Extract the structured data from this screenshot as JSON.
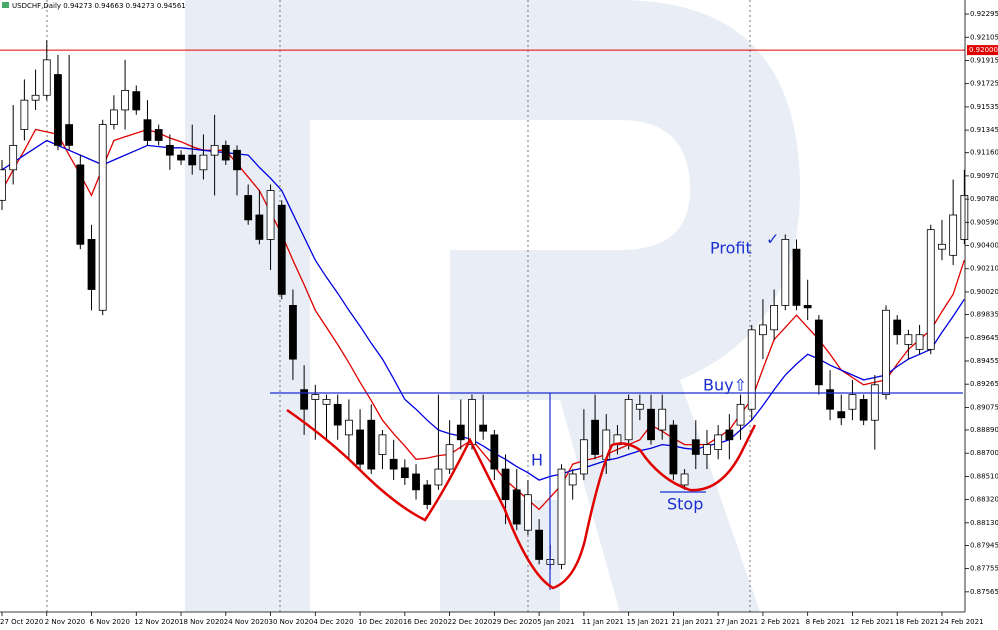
{
  "chart_data": {
    "type": "candlestick",
    "header": "USDCHF,Daily  0.94273 0.94663 0.94273 0.94561",
    "categories": [
      "27 Oct 2020",
      null,
      null,
      null,
      "2 Nov 2020",
      null,
      null,
      null,
      "6 Nov 2020",
      null,
      null,
      null,
      "12 Nov 2020",
      null,
      null,
      null,
      "18 Nov 2020",
      null,
      null,
      null,
      "24 Nov 2020",
      null,
      null,
      null,
      "30 Nov 2020",
      null,
      null,
      null,
      "4 Dec 2020",
      null,
      null,
      null,
      "10 Dec 2020",
      null,
      null,
      null,
      "16 Dec 2020",
      null,
      null,
      null,
      "22 Dec 2020",
      null,
      null,
      null,
      "29 Dec 2020",
      null,
      null,
      null,
      "5 Jan 2021",
      null,
      null,
      null,
      "11 Jan 2021",
      null,
      null,
      null,
      "15 Jan 2021",
      null,
      null,
      null,
      "21 Jan 2021",
      null,
      null,
      null,
      "27 Jan 2021",
      null,
      null,
      null,
      "2 Feb 2021",
      null,
      null,
      null,
      "8 Feb 2021",
      null,
      null,
      null,
      "12 Feb 2021",
      null,
      null,
      null,
      "18 Feb 2021",
      null,
      null,
      null,
      "24 Feb 2021",
      null,
      null
    ],
    "open": [
      0.9077,
      0.9102,
      0.9135,
      0.9159,
      0.9163,
      0.918,
      0.9139,
      0.9106,
      0.9045,
      0.8987,
      0.9139,
      0.9151,
      0.9166,
      0.9143,
      0.9135,
      0.9122,
      0.9114,
      0.9114,
      0.9102,
      0.9114,
      0.9122,
      0.9118,
      0.9081,
      0.9065,
      0.9045,
      0.9073,
      0.8991,
      0.8922,
      0.8914,
      0.891,
      0.891,
      0.8885,
      0.8889,
      0.8897,
      0.8869,
      0.8865,
      0.8858,
      0.8853,
      0.8844,
      0.8844,
      0.8857,
      0.8893,
      0.8877,
      0.8893,
      0.8885,
      0.8857,
      0.884,
      0.8807,
      0.8807,
      0.8779,
      0.8779,
      0.8844,
      0.8853,
      0.8897,
      0.8865,
      0.8877,
      0.8881,
      0.8906,
      0.8906,
      0.8889,
      0.8893,
      0.8844,
      0.8881,
      0.8869,
      0.8873,
      0.8889,
      0.8893,
      0.8906,
      0.8967,
      0.8971,
      0.8991,
      0.9037,
      0.8991,
      0.8979,
      0.8922,
      0.8904,
      0.8906,
      0.8914,
      0.8897,
      0.8918,
      0.8979,
      0.8959,
      0.8955,
      0.8955,
      0.9037,
      0.9032,
      0.9045
    ],
    "high": [
      0.911,
      0.9155,
      0.9176,
      0.9184,
      0.9208,
      0.9196,
      0.9196,
      0.9114,
      0.9057,
      0.9143,
      0.9163,
      0.9192,
      0.9171,
      0.9159,
      0.9139,
      0.9131,
      0.9118,
      0.9139,
      0.9131,
      0.9147,
      0.9126,
      0.9122,
      0.909,
      0.9085,
      0.909,
      0.9077,
      0.9004,
      0.8942,
      0.8926,
      0.8918,
      0.8918,
      0.8914,
      0.8906,
      0.891,
      0.8889,
      0.8881,
      0.8865,
      0.8861,
      0.8848,
      0.8918,
      0.8897,
      0.8914,
      0.8918,
      0.8918,
      0.8889,
      0.8869,
      0.8857,
      0.8848,
      0.8816,
      0.8795,
      0.8861,
      0.8857,
      0.8906,
      0.8918,
      0.8902,
      0.8893,
      0.8918,
      0.8918,
      0.8918,
      0.8918,
      0.8897,
      0.8857,
      0.8897,
      0.8889,
      0.8893,
      0.8902,
      0.8918,
      0.8975,
      0.8996,
      0.9004,
      0.9049,
      0.9045,
      0.9012,
      0.8983,
      0.8938,
      0.8918,
      0.893,
      0.8918,
      0.8934,
      0.8991,
      0.8983,
      0.8971,
      0.8975,
      0.9057,
      0.9061,
      0.9094,
      0.9102
    ],
    "low": [
      0.9069,
      0.909,
      0.9126,
      0.9151,
      0.9159,
      0.9118,
      0.9118,
      0.9037,
      0.8987,
      0.8983,
      0.9135,
      0.9135,
      0.9147,
      0.9122,
      0.9122,
      0.9102,
      0.9106,
      0.9098,
      0.9094,
      0.9081,
      0.9106,
      0.9081,
      0.9057,
      0.9041,
      0.902,
      0.8996,
      0.893,
      0.8885,
      0.8881,
      0.8881,
      0.8881,
      0.8865,
      0.8857,
      0.8853,
      0.8857,
      0.8848,
      0.8844,
      0.8832,
      0.8824,
      0.884,
      0.8853,
      0.8873,
      0.8873,
      0.8881,
      0.8848,
      0.8812,
      0.8807,
      0.8803,
      0.8779,
      0.8775,
      0.8775,
      0.8832,
      0.8848,
      0.8865,
      0.8853,
      0.8869,
      0.8873,
      0.8897,
      0.8877,
      0.8881,
      0.8848,
      0.884,
      0.8857,
      0.8857,
      0.8865,
      0.8865,
      0.8881,
      0.8897,
      0.8947,
      0.8963,
      0.8987,
      0.8987,
      0.8979,
      0.8918,
      0.8897,
      0.8893,
      0.8897,
      0.8893,
      0.8873,
      0.8914,
      0.8959,
      0.8947,
      0.8951,
      0.8951,
      0.9028,
      0.9024,
      0.9041
    ],
    "close": [
      0.9102,
      0.9122,
      0.9159,
      0.9163,
      0.9192,
      0.9122,
      0.9122,
      0.9041,
      0.9004,
      0.9139,
      0.9151,
      0.9167,
      0.9151,
      0.9126,
      0.9126,
      0.9114,
      0.911,
      0.9106,
      0.9114,
      0.9122,
      0.911,
      0.9102,
      0.9061,
      0.9045,
      0.9085,
      0.9,
      0.8947,
      0.8906,
      0.8918,
      0.8914,
      0.8893,
      0.8897,
      0.8861,
      0.8857,
      0.8885,
      0.8857,
      0.885,
      0.884,
      0.8828,
      0.8857,
      0.8877,
      0.8881,
      0.8914,
      0.8888,
      0.8857,
      0.8832,
      0.8812,
      0.8836,
      0.8783,
      0.8783,
      0.8857,
      0.8853,
      0.8881,
      0.8869,
      0.8889,
      0.8885,
      0.8914,
      0.891,
      0.8881,
      0.8906,
      0.8853,
      0.8853,
      0.8869,
      0.8877,
      0.8885,
      0.8881,
      0.891,
      0.8971,
      0.8975,
      0.8991,
      0.9045,
      0.8991,
      0.8989,
      0.8926,
      0.8906,
      0.8899,
      0.8918,
      0.8897,
      0.8926,
      0.8987,
      0.8967,
      0.8967,
      0.8967,
      0.9053,
      0.9041,
      0.9065,
      0.9081
    ],
    "bull_color": "#ffffff",
    "bear_color": "#000000",
    "lines": [
      {
        "color": "#e00000",
        "values": [
          0.9085,
          0.9102,
          0.9118,
          0.9135,
          0.9133,
          0.9131,
          0.9114,
          0.9098,
          0.9081,
          0.9104,
          0.9126,
          0.9129,
          0.9132,
          0.9135,
          0.9132,
          0.9128,
          0.9125,
          0.9121,
          0.9118,
          0.9118,
          0.9118,
          0.9107,
          0.9096,
          0.9085,
          0.9067,
          0.9049,
          0.9028,
          0.9008,
          0.8987,
          0.8973,
          0.8959,
          0.8944,
          0.8928,
          0.8913,
          0.8897,
          0.8886,
          0.8876,
          0.8865,
          0.8866,
          0.8868,
          0.8869,
          0.8875,
          0.8881,
          0.887,
          0.8859,
          0.8848,
          0.884,
          0.8832,
          0.8824,
          0.8834,
          0.8844,
          0.8861,
          0.8864,
          0.8866,
          0.8869,
          0.8873,
          0.8877,
          0.8881,
          0.8893,
          0.8888,
          0.8882,
          0.8877,
          0.8877,
          0.8877,
          0.8883,
          0.8889,
          0.8902,
          0.8914,
          0.8939,
          0.8963,
          0.8973,
          0.8983,
          0.8973,
          0.8963,
          0.8951,
          0.8938,
          0.8932,
          0.8926,
          0.8928,
          0.893,
          0.8943,
          0.8955,
          0.8963,
          0.8971,
          0.8986,
          0.9,
          0.9028
        ]
      },
      {
        "color": "#0000e0",
        "values": [
          0.9102,
          0.9108,
          0.9114,
          0.912,
          0.9126,
          0.9122,
          0.9118,
          0.9114,
          0.911,
          0.9106,
          0.911,
          0.9114,
          0.9118,
          0.9122,
          0.9121,
          0.912,
          0.912,
          0.9119,
          0.9118,
          0.9117,
          0.9116,
          0.9115,
          0.9114,
          0.9104,
          0.9095,
          0.9085,
          0.9066,
          0.9047,
          0.9028,
          0.9014,
          0.9001,
          0.8987,
          0.8974,
          0.896,
          0.8947,
          0.8931,
          0.8914,
          0.8906,
          0.8897,
          0.8889,
          0.8886,
          0.8884,
          0.8881,
          0.8876,
          0.887,
          0.8865,
          0.8859,
          0.8854,
          0.8848,
          0.8851,
          0.8853,
          0.8856,
          0.8858,
          0.8861,
          0.8864,
          0.8866,
          0.8869,
          0.8872,
          0.8874,
          0.8877,
          0.8876,
          0.8874,
          0.8873,
          0.8876,
          0.8878,
          0.8881,
          0.8889,
          0.8897,
          0.8909,
          0.8922,
          0.8934,
          0.8943,
          0.8951,
          0.8947,
          0.8942,
          0.8938,
          0.8934,
          0.893,
          0.8932,
          0.8934,
          0.8941,
          0.8947,
          0.8951,
          0.8955,
          0.8969,
          0.8982,
          0.8996
        ]
      }
    ],
    "ylim": [
      0.874,
      0.9241
    ],
    "yticks": [
      0.92295,
      0.92105,
      0.91915,
      0.91725,
      0.91535,
      0.91345,
      {
        "value": 0.9116,
        "label": "0.91160"
      },
      {
        "value": 0.9097,
        "label": "0.90970"
      },
      {
        "value": 0.9078,
        "label": "0.90780"
      },
      {
        "value": 0.9059,
        "label": "0.90590"
      },
      {
        "value": 0.904,
        "label": "0.90400"
      },
      {
        "value": 0.9021,
        "label": "0.90210"
      },
      {
        "value": 0.9002,
        "label": "0.90020"
      },
      0.89835,
      0.89645,
      0.89455,
      0.89265,
      0.89075,
      {
        "value": 0.8889,
        "label": "0.88890"
      },
      {
        "value": 0.887,
        "label": "0.88700"
      },
      {
        "value": 0.8851,
        "label": "0.88510"
      },
      {
        "value": 0.8832,
        "label": "0.88320"
      },
      {
        "value": 0.8813,
        "label": "0.88130"
      },
      0.87945,
      0.87755,
      0.87565
    ],
    "hline": {
      "value": 0.92,
      "label": "0.92000",
      "color": "#e00000"
    },
    "annotations": {
      "profit": "Profit",
      "check": "✓",
      "buy": "Buy⇧",
      "head": "H",
      "stop": "Stop"
    }
  }
}
